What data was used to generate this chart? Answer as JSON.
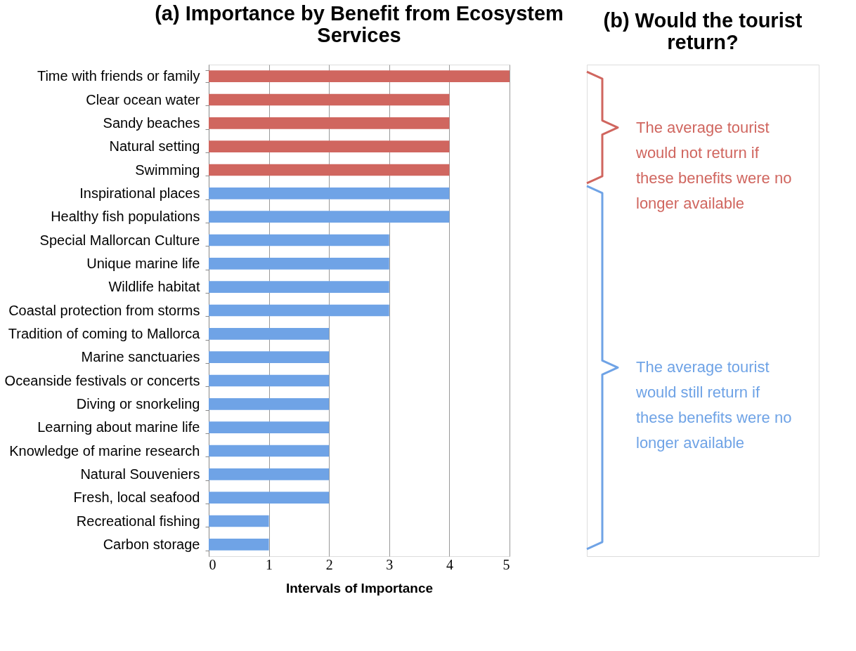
{
  "chart_data": {
    "type": "bar",
    "orientation": "horizontal",
    "title": "(a) Importance by Benefit from Ecosystem Services",
    "xlabel": "Intervals of Importance",
    "categories": [
      "Time with friends or family",
      "Clear ocean water",
      "Sandy beaches",
      "Natural setting",
      "Swimming",
      "Inspirational places",
      "Healthy fish populations",
      "Special Mallorcan Culture",
      "Unique marine life",
      "Wildlife habitat",
      "Coastal protection from storms",
      "Tradition of coming to Mallorca",
      "Marine sanctuaries",
      "Oceanside festivals or concerts",
      "Diving or snorkeling",
      "Learning about marine life",
      "Knowledge of marine research",
      "Natural Souveniers",
      "Fresh, local seafood",
      "Recreational fishing",
      "Carbon storage"
    ],
    "values": [
      5,
      4,
      4,
      4,
      4,
      4,
      4,
      3,
      3,
      3,
      3,
      2,
      2,
      2,
      2,
      2,
      2,
      2,
      2,
      1,
      1
    ],
    "colors": [
      "#d0665f",
      "#d0665f",
      "#d0665f",
      "#d0665f",
      "#d0665f",
      "#6fa3e6",
      "#6fa3e6",
      "#6fa3e6",
      "#6fa3e6",
      "#6fa3e6",
      "#6fa3e6",
      "#6fa3e6",
      "#6fa3e6",
      "#6fa3e6",
      "#6fa3e6",
      "#6fa3e6",
      "#6fa3e6",
      "#6fa3e6",
      "#6fa3e6",
      "#6fa3e6",
      "#6fa3e6"
    ],
    "xlim": [
      0,
      5
    ],
    "xticks": [
      0,
      1,
      2,
      3,
      4,
      5
    ],
    "grid": "x",
    "annotations": [
      "(b) Would the tourist return?",
      "The average tourist would not return if these benefits were no longer available",
      "The average tourist would still return if these benefits were no longer available"
    ]
  }
}
